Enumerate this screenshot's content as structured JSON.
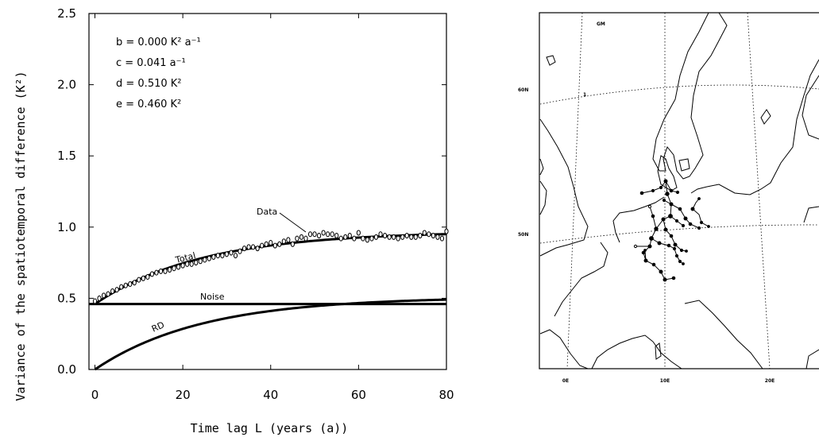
{
  "chart_data": [
    {
      "type": "line",
      "xlabel": "Time lag L (years (a))",
      "ylabel": "Variance of the spatiotemporal difference (K²)",
      "xlim": [
        0,
        80
      ],
      "ylim": [
        0,
        2.5
      ],
      "xticks": [
        "0",
        "20",
        "40",
        "60",
        "80"
      ],
      "yticks": [
        "0.0",
        "0.5",
        "1.0",
        "1.5",
        "2.0",
        "2.5"
      ],
      "parameters": {
        "b": "b  =  0.000 K² a⁻¹",
        "c": "c  =  0.041 a⁻¹",
        "d": "d  =  0.510 K²",
        "e": "e  =  0.460 K²"
      },
      "labels": {
        "data": "Data",
        "total": "Total",
        "noise": "Noise",
        "rd": "RD"
      },
      "model": {
        "b": 0.0,
        "c": 0.041,
        "d": 0.51,
        "e": 0.46
      },
      "series": [
        {
          "name": "Data",
          "x": [
            0,
            1,
            2,
            3,
            4,
            5,
            6,
            7,
            8,
            9,
            10,
            11,
            12,
            13,
            14,
            15,
            16,
            17,
            18,
            19,
            20,
            21,
            22,
            23,
            24,
            25,
            26,
            27,
            28,
            29,
            30,
            31,
            32,
            33,
            34,
            35,
            36,
            37,
            38,
            39,
            40,
            41,
            42,
            43,
            44,
            45,
            46,
            47,
            48,
            49,
            50,
            51,
            52,
            53,
            54,
            55,
            56,
            57,
            58,
            59,
            60,
            61,
            62,
            63,
            64,
            65,
            66,
            67,
            68,
            69,
            70,
            71,
            72,
            73,
            74,
            75,
            76,
            77,
            78,
            79,
            80
          ],
          "y": [
            0.48,
            0.5,
            0.52,
            0.53,
            0.55,
            0.56,
            0.58,
            0.59,
            0.6,
            0.61,
            0.63,
            0.64,
            0.65,
            0.67,
            0.68,
            0.69,
            0.69,
            0.7,
            0.71,
            0.72,
            0.73,
            0.74,
            0.74,
            0.75,
            0.76,
            0.77,
            0.78,
            0.79,
            0.8,
            0.8,
            0.81,
            0.82,
            0.8,
            0.83,
            0.85,
            0.86,
            0.86,
            0.85,
            0.87,
            0.88,
            0.89,
            0.87,
            0.88,
            0.9,
            0.91,
            0.88,
            0.92,
            0.93,
            0.92,
            0.95,
            0.95,
            0.94,
            0.96,
            0.95,
            0.95,
            0.94,
            0.92,
            0.93,
            0.94,
            0.92,
            0.96,
            0.92,
            0.91,
            0.92,
            0.93,
            0.95,
            0.94,
            0.93,
            0.93,
            0.92,
            0.93,
            0.94,
            0.93,
            0.93,
            0.94,
            0.96,
            0.95,
            0.94,
            0.93,
            0.92,
            0.97
          ]
        },
        {
          "name": "Total",
          "formula": "d*(1-exp(-c*L)) + e + b*L"
        },
        {
          "name": "Noise",
          "formula": "e"
        },
        {
          "name": "RD",
          "formula": "d*(1-exp(-c*L)) + b*L"
        }
      ],
      "grid": false
    },
    {
      "type": "map",
      "lat_labels": [
        "60N",
        "50N"
      ],
      "lon_labels": [
        "0E",
        "10E",
        "20E"
      ],
      "top_label": "GM",
      "contour_label": "1"
    }
  ]
}
